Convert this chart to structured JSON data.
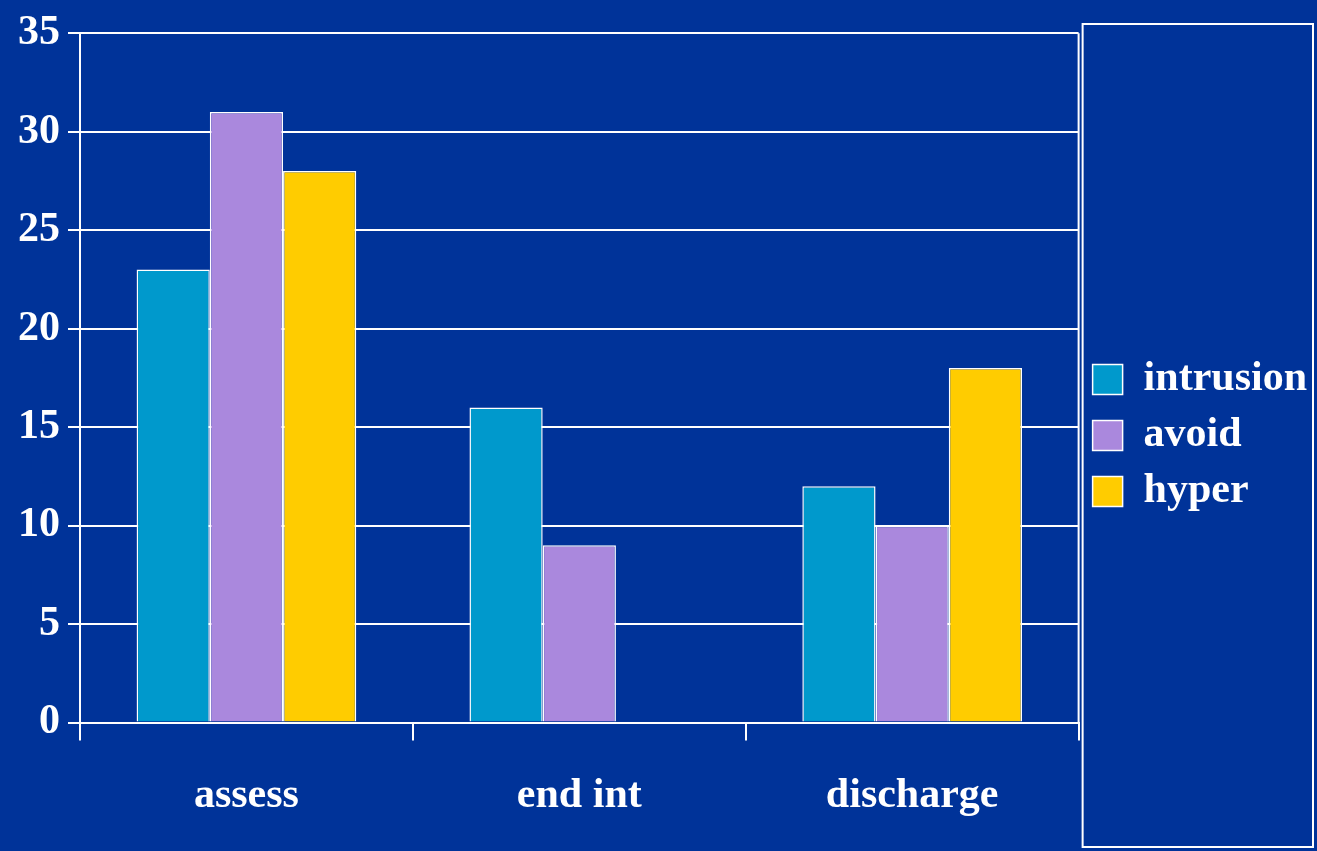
{
  "chart_data": {
    "type": "bar",
    "categories": [
      "assess",
      "end int",
      "discharge"
    ],
    "series": [
      {
        "name": "intrusion",
        "color": "#0099cc",
        "values": [
          23,
          16,
          12
        ]
      },
      {
        "name": "avoid",
        "color": "#aa88dd",
        "values": [
          31,
          9,
          10
        ]
      },
      {
        "name": "hyper",
        "color": "#ffcc00",
        "values": [
          28,
          null,
          18
        ]
      }
    ],
    "ylim": [
      0,
      35
    ],
    "yticks": [
      0,
      5,
      10,
      15,
      20,
      25,
      30,
      35
    ],
    "grid": "y",
    "legend": "right"
  }
}
